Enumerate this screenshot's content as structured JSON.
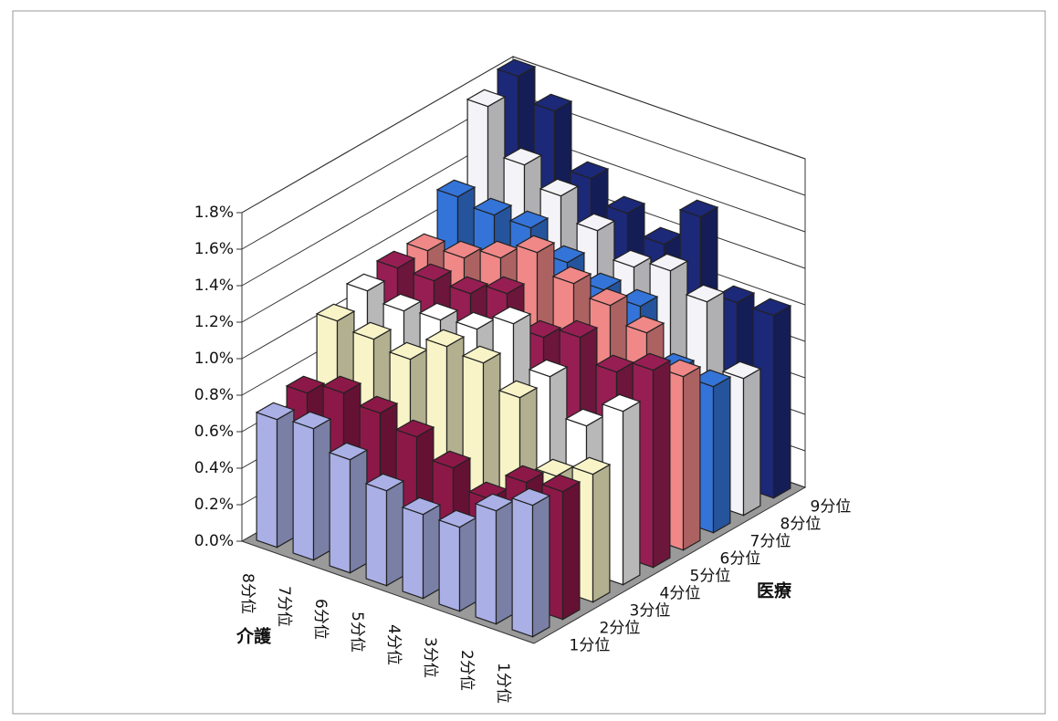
{
  "chart_data": {
    "type": "bar3d",
    "categories": [
      "8分位",
      "7分位",
      "6分位",
      "5分位",
      "4分位",
      "3分位",
      "2分位",
      "1分位"
    ],
    "x_title": "介護",
    "depth_title": "医療",
    "series": [
      {
        "name": "1分位",
        "color": "#aab0e6",
        "values": [
          0.7,
          0.72,
          0.62,
          0.52,
          0.46,
          0.46,
          0.62,
          0.72
        ]
      },
      {
        "name": "2分位",
        "color": "#8c1848",
        "values": [
          0.75,
          0.82,
          0.78,
          0.72,
          0.62,
          0.52,
          0.68,
          0.7
        ]
      },
      {
        "name": "3分位",
        "color": "#f8f4c8",
        "values": [
          1.05,
          1.02,
          0.98,
          1.12,
          1.1,
          0.98,
          0.62,
          0.7
        ]
      },
      {
        "name": "4分位",
        "color": "#ffffff",
        "values": [
          1.12,
          1.08,
          1.1,
          1.12,
          1.22,
          1.0,
          0.8,
          0.95
        ]
      },
      {
        "name": "5分位",
        "color": "#961e52",
        "values": [
          1.15,
          1.15,
          1.15,
          1.22,
          1.05,
          1.12,
          1.0,
          1.08
        ]
      },
      {
        "name": "6分位",
        "color": "#f08888",
        "values": [
          1.15,
          1.18,
          1.25,
          1.35,
          1.25,
          1.2,
          1.12,
          0.95
        ]
      },
      {
        "name": "7分位",
        "color": "#3474d8",
        "values": [
          1.35,
          1.32,
          1.32,
          1.2,
          1.12,
          1.1,
          0.82,
          0.8
        ]
      },
      {
        "name": "8分位",
        "color": "#f4f4f8",
        "values": [
          1.75,
          1.5,
          1.4,
          1.28,
          1.15,
          1.2,
          1.1,
          0.75
        ]
      },
      {
        "name": "9分位",
        "color": "#1c2878",
        "values": [
          1.82,
          1.7,
          1.4,
          1.28,
          1.18,
          1.4,
          1.0,
          1.0
        ]
      }
    ],
    "ylim": [
      0,
      1.8
    ],
    "yticks": [
      {
        "value": 0,
        "label": "0.0%"
      },
      {
        "value": 0.2,
        "label": "0.2%"
      },
      {
        "value": 0.4,
        "label": "0.4%"
      },
      {
        "value": 0.6,
        "label": "0.6%"
      },
      {
        "value": 0.8,
        "label": "0.8%"
      },
      {
        "value": 1.0,
        "label": "1.0%"
      },
      {
        "value": 1.2,
        "label": "1.2%"
      },
      {
        "value": 1.4,
        "label": "1.4%"
      },
      {
        "value": 1.6,
        "label": "1.6%"
      },
      {
        "value": 1.8,
        "label": "1.8%"
      }
    ],
    "grid": true
  }
}
